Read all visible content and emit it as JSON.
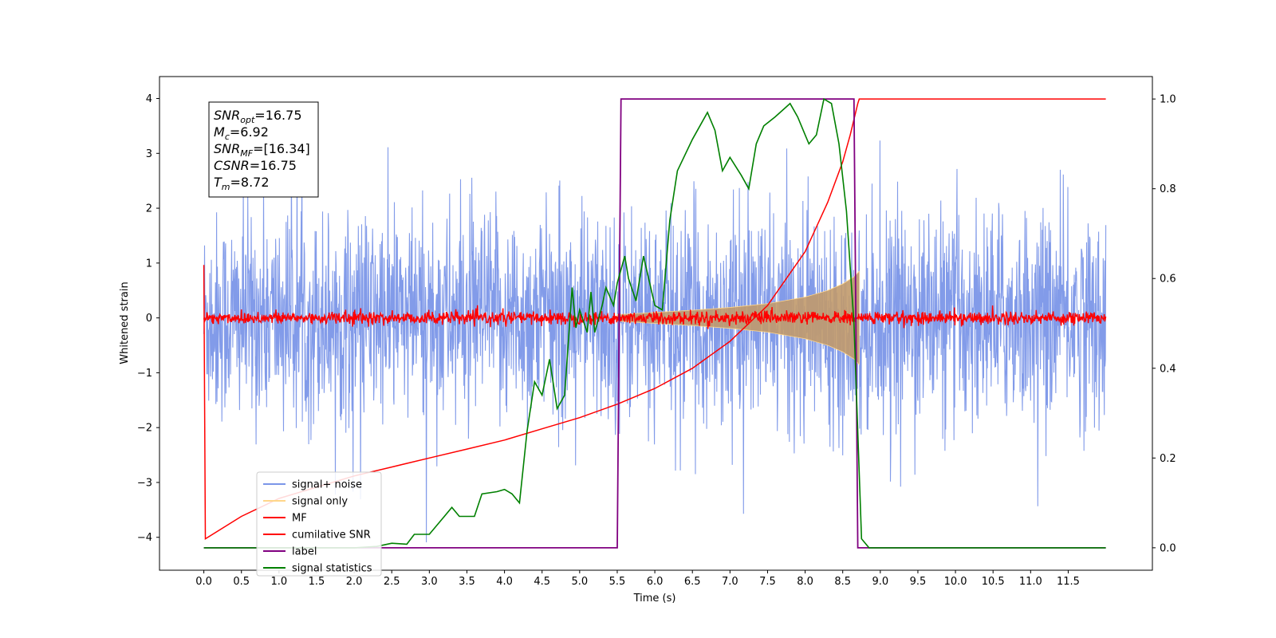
{
  "chart_data": {
    "type": "line",
    "xlabel": "Time (s)",
    "ylabel": "Whitened strain",
    "xlim": [
      -0.59,
      12.62
    ],
    "ylim": [
      -4.6,
      4.4
    ],
    "ylim_right": [
      -0.05,
      1.05
    ],
    "x_ticks": [
      "0.0",
      "0.5",
      "1.0",
      "1.5",
      "2.0",
      "2.5",
      "3.0",
      "3.5",
      "4.0",
      "4.5",
      "5.0",
      "5.5",
      "6.0",
      "6.5",
      "7.0",
      "7.5",
      "8.0",
      "8.5",
      "9.0",
      "9.5",
      "10.0",
      "10.5",
      "11.0",
      "11.5"
    ],
    "y_ticks_left": [
      "−4",
      "−3",
      "−2",
      "−1",
      "0",
      "1",
      "2",
      "3",
      "4"
    ],
    "y_ticks_right": [
      "0.0",
      "0.2",
      "0.4",
      "0.6",
      "0.8",
      "1.0"
    ],
    "info_box": {
      "lines": [
        {
          "base": "SNR",
          "sub": "opt",
          "value": "=16.75"
        },
        {
          "base": "M",
          "sub": "c",
          "value": "=6.92"
        },
        {
          "base": "SNR",
          "sub": "MF",
          "value": "=[16.34]"
        },
        {
          "base": "CSNR",
          "sub": "",
          "value": "=16.75"
        },
        {
          "base": "T",
          "sub": "m",
          "value": "=8.72"
        }
      ]
    },
    "legend": {
      "location": "lower-left",
      "entries": [
        {
          "label": "signal+ noise",
          "color": "#7b96e8"
        },
        {
          "label": "signal only",
          "color": "#ffd68a"
        },
        {
          "label": "MF",
          "color": "#ff0000"
        },
        {
          "label": "cumilative SNR",
          "color": "#ff0000"
        },
        {
          "label": "label",
          "color": "#800080"
        },
        {
          "label": "signal statistics",
          "color": "#008000"
        }
      ]
    },
    "series": [
      {
        "name": "signal+ noise",
        "axis": "left",
        "color": "#7b96e8",
        "description_envelope": {
          "x_start": 0.0,
          "x_end": 12.0,
          "typical_amplitude": 2.0,
          "max": 4.0,
          "min": -4.15
        }
      },
      {
        "name": "signal only",
        "axis": "left",
        "color": "#ffd68a",
        "envelope": {
          "x": [
            5.5,
            6.0,
            6.5,
            7.0,
            7.5,
            8.0,
            8.3,
            8.5,
            8.65,
            8.72
          ],
          "amp": [
            0.06,
            0.1,
            0.14,
            0.19,
            0.26,
            0.38,
            0.5,
            0.62,
            0.75,
            0.85
          ]
        }
      },
      {
        "name": "MF",
        "axis": "left",
        "color": "#ff0000",
        "noise_amplitude": 0.1,
        "x_start": 0.0,
        "x_end": 12.0
      },
      {
        "name": "cumilative SNR",
        "axis": "right",
        "color": "#ff0000",
        "x": [
          0.0,
          0.02,
          0.5,
          1.0,
          1.5,
          2.0,
          2.5,
          3.0,
          3.5,
          4.0,
          4.5,
          5.0,
          5.5,
          6.0,
          6.5,
          7.0,
          7.5,
          8.0,
          8.3,
          8.5,
          8.6,
          8.7,
          8.72,
          12.0
        ],
        "y": [
          0.63,
          0.02,
          0.07,
          0.11,
          0.135,
          0.16,
          0.18,
          0.2,
          0.22,
          0.24,
          0.265,
          0.29,
          0.32,
          0.355,
          0.4,
          0.46,
          0.54,
          0.66,
          0.77,
          0.86,
          0.92,
          0.99,
          1.0,
          1.0
        ]
      },
      {
        "name": "label",
        "axis": "right",
        "color": "#800080",
        "x": [
          0.0,
          5.5,
          5.55,
          8.65,
          8.7,
          12.0
        ],
        "y": [
          0.0,
          0.0,
          1.0,
          1.0,
          0.0,
          0.0
        ]
      },
      {
        "name": "signal statistics",
        "axis": "right",
        "color": "#008000",
        "x": [
          0.0,
          0.5,
          1.0,
          1.5,
          2.0,
          2.3,
          2.5,
          2.7,
          2.8,
          3.0,
          3.2,
          3.3,
          3.4,
          3.6,
          3.7,
          3.9,
          4.0,
          4.1,
          4.2,
          4.3,
          4.4,
          4.5,
          4.6,
          4.7,
          4.8,
          4.9,
          4.95,
          5.0,
          5.1,
          5.15,
          5.2,
          5.3,
          5.35,
          5.45,
          5.5,
          5.6,
          5.65,
          5.75,
          5.85,
          6.0,
          6.1,
          6.2,
          6.3,
          6.5,
          6.7,
          6.8,
          6.9,
          7.0,
          7.15,
          7.25,
          7.35,
          7.45,
          7.6,
          7.8,
          7.9,
          8.0,
          8.05,
          8.15,
          8.25,
          8.35,
          8.45,
          8.55,
          8.65,
          8.75,
          8.85,
          12.0
        ],
        "y": [
          0.0,
          0.0,
          0.0,
          0.0,
          0.0,
          0.003,
          0.01,
          0.008,
          0.03,
          0.03,
          0.07,
          0.09,
          0.07,
          0.07,
          0.12,
          0.125,
          0.13,
          0.12,
          0.1,
          0.26,
          0.37,
          0.34,
          0.42,
          0.31,
          0.34,
          0.58,
          0.49,
          0.53,
          0.48,
          0.57,
          0.48,
          0.54,
          0.58,
          0.54,
          0.59,
          0.65,
          0.6,
          0.55,
          0.65,
          0.54,
          0.53,
          0.73,
          0.84,
          0.91,
          0.97,
          0.93,
          0.84,
          0.87,
          0.83,
          0.8,
          0.9,
          0.94,
          0.96,
          0.99,
          0.96,
          0.92,
          0.9,
          0.92,
          1.0,
          0.99,
          0.9,
          0.75,
          0.5,
          0.02,
          0.0,
          0.0
        ]
      }
    ]
  }
}
